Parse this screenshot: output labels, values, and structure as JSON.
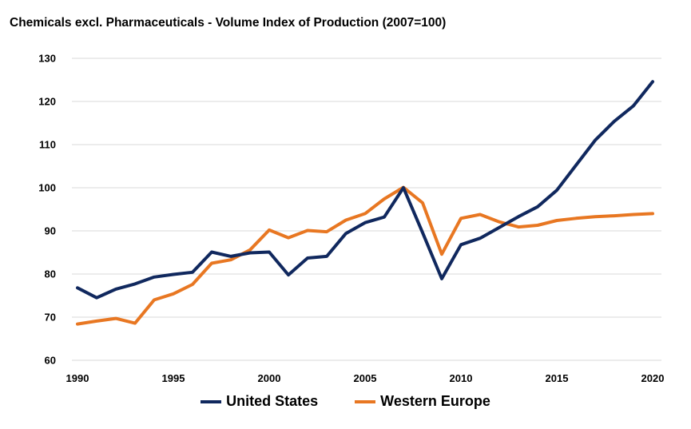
{
  "chart_data": {
    "type": "line",
    "title": "Chemicals excl. Pharmaceuticals - Volume Index of Production (2007=100)",
    "xlabel": "",
    "ylabel": "",
    "x": [
      1990,
      1991,
      1992,
      1993,
      1994,
      1995,
      1996,
      1997,
      1998,
      1999,
      2000,
      2001,
      2002,
      2003,
      2004,
      2005,
      2006,
      2007,
      2008,
      2009,
      2010,
      2011,
      2012,
      2013,
      2014,
      2015,
      2016,
      2017,
      2018,
      2019,
      2020
    ],
    "xlim": [
      1990,
      2020
    ],
    "xticks": [
      "1990",
      "1995",
      "2000",
      "2005",
      "2010",
      "2015",
      "2020"
    ],
    "ylim": [
      60,
      130
    ],
    "yticks": [
      "60",
      "70",
      "80",
      "90",
      "100",
      "110",
      "120",
      "130"
    ],
    "grid": true,
    "legend": "bottom",
    "series": [
      {
        "name": "United States",
        "color": "#10285e",
        "values": [
          76.8,
          74.5,
          76.5,
          77.7,
          79.3,
          79.9,
          80.4,
          85.1,
          84.1,
          84.9,
          85.1,
          79.8,
          83.7,
          84.1,
          89.4,
          91.9,
          93.2,
          100.0,
          89.6,
          78.9,
          86.8,
          88.3,
          90.8,
          93.3,
          95.6,
          99.4,
          105.2,
          111.0,
          115.4,
          119.0,
          124.6
        ]
      },
      {
        "name": "Western Europe",
        "color": "#e87722",
        "values": [
          68.4,
          69.1,
          69.7,
          68.6,
          74.0,
          75.4,
          77.6,
          82.5,
          83.3,
          85.6,
          90.2,
          88.4,
          90.1,
          89.8,
          92.5,
          94.0,
          97.4,
          100.1,
          96.5,
          84.6,
          92.9,
          93.8,
          92.1,
          90.9,
          91.3,
          92.4,
          92.9,
          93.3,
          93.5,
          93.8,
          94.0
        ]
      }
    ]
  }
}
